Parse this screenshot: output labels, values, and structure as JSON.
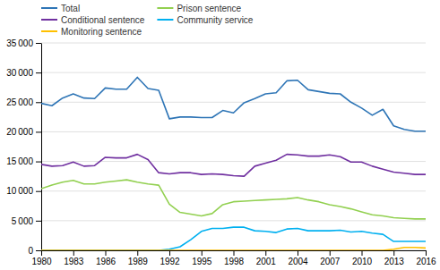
{
  "chart_data": {
    "type": "line",
    "x": [
      1980,
      1981,
      1982,
      1983,
      1984,
      1985,
      1986,
      1987,
      1988,
      1989,
      1990,
      1991,
      1992,
      1993,
      1994,
      1995,
      1996,
      1997,
      1998,
      1999,
      2000,
      2001,
      2002,
      2003,
      2004,
      2005,
      2006,
      2007,
      2008,
      2009,
      2010,
      2011,
      2012,
      2013,
      2014,
      2015,
      2016
    ],
    "series": [
      {
        "name": "Total",
        "color": "#2e75b6",
        "values": [
          24800,
          24400,
          25700,
          26400,
          25700,
          25600,
          27400,
          27200,
          27200,
          29200,
          27300,
          27000,
          22200,
          22500,
          22500,
          22400,
          22400,
          23600,
          23200,
          24900,
          25600,
          26400,
          26600,
          28600,
          28700,
          27100,
          26800,
          26500,
          26400,
          25000,
          24000,
          22800,
          23800,
          21000,
          20400,
          20100,
          20100
        ]
      },
      {
        "name": "Prison sentence",
        "color": "#92d050",
        "values": [
          10400,
          11000,
          11500,
          11800,
          11200,
          11200,
          11500,
          11700,
          11900,
          11500,
          11200,
          11000,
          7800,
          6400,
          6100,
          5800,
          6200,
          7700,
          8200,
          8300,
          8400,
          8500,
          8600,
          8700,
          8900,
          8500,
          8200,
          7700,
          7400,
          7000,
          6500,
          6000,
          5800,
          5500,
          5400,
          5300,
          5300
        ]
      },
      {
        "name": "Conditional sentence",
        "color": "#7030a0",
        "values": [
          14500,
          14200,
          14300,
          14900,
          14200,
          14300,
          15700,
          15600,
          15600,
          16200,
          15300,
          13100,
          12900,
          13100,
          13100,
          12800,
          12900,
          12800,
          12600,
          12500,
          14200,
          14700,
          15200,
          16200,
          16100,
          15900,
          15900,
          16100,
          15800,
          14900,
          14900,
          14200,
          13700,
          13200,
          13000,
          12800,
          12800
        ]
      },
      {
        "name": "Community service",
        "color": "#00b0f0",
        "values": [
          0,
          0,
          0,
          0,
          0,
          0,
          0,
          0,
          0,
          0,
          0,
          0,
          200,
          600,
          1800,
          3200,
          3700,
          3700,
          3900,
          3900,
          3300,
          3200,
          3000,
          3600,
          3700,
          3300,
          3300,
          3300,
          3400,
          3100,
          3200,
          2900,
          2700,
          1500,
          1500,
          1500,
          1500
        ]
      },
      {
        "name": "Monitoring sentence",
        "color": "#ffc000",
        "values": [
          0,
          0,
          0,
          0,
          0,
          0,
          0,
          0,
          0,
          0,
          0,
          0,
          0,
          0,
          0,
          0,
          0,
          0,
          0,
          0,
          0,
          0,
          0,
          0,
          0,
          0,
          0,
          0,
          0,
          0,
          0,
          0,
          0,
          200,
          500,
          500,
          400
        ]
      }
    ],
    "xlim": [
      1980,
      2016
    ],
    "xticks": [
      1980,
      1983,
      1986,
      1989,
      1992,
      1995,
      1998,
      2001,
      2004,
      2007,
      2010,
      2013,
      2016
    ],
    "ylim": [
      0,
      35000
    ],
    "yticks": [
      0,
      {
        "value": 5000,
        "label": "5 000"
      },
      {
        "value": 10000,
        "label": "10 000"
      },
      {
        "value": 15000,
        "label": "15 000"
      },
      {
        "value": 20000,
        "label": "20 000"
      },
      {
        "value": 25000,
        "label": "25 000"
      },
      {
        "value": 30000,
        "label": "30 000"
      },
      {
        "value": 35000,
        "label": "35 000"
      }
    ],
    "grid": true,
    "legend": "upper left"
  }
}
